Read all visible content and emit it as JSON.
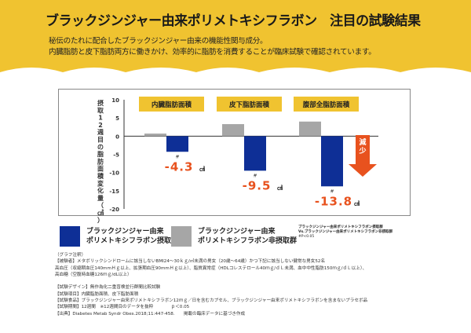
{
  "header": {
    "title": "ブラックジンジャー由来ポリメトキシフラボン　注目の試験結果",
    "subtitle_line1": "秘伝のたれに配合したブラックジンジャー由来の機能性関与成分。",
    "subtitle_line2": "内臓脂肪と皮下脂肪両方に働きかけ、効率的に脂肪を消費することが臨床試験で確認されています。",
    "background_color": "#f0c330"
  },
  "chart_data": {
    "type": "bar",
    "ylabel": "摂取12週目の脂肪面積変化量（㎠）",
    "ylim": [
      -20,
      10
    ],
    "yticks": [
      10,
      5,
      0,
      -5,
      -10,
      -15,
      -20
    ],
    "grid": false,
    "categories": [
      "内臓脂肪面積",
      "皮下脂肪面積",
      "腹部全脂肪面積"
    ],
    "series": [
      {
        "name": "ブラックジンジャー由来ポリメトキシフラボン非摂取群",
        "color": "#a6a6a6",
        "values": [
          0.7,
          3.3,
          4.0
        ]
      },
      {
        "name": "ブラックジンジャー由来ポリメトキシフラボン摂取群",
        "color": "#0e2f96",
        "values": [
          -4.3,
          -9.5,
          -13.8
        ]
      }
    ],
    "data_labels": [
      "-4.3",
      "-9.5",
      "-13.8"
    ],
    "data_label_unit": "㎠",
    "significance_mark": "#",
    "arrow_label": "減少",
    "arrow_color": "#e8521e",
    "label_color": "#e8521e"
  },
  "legend": {
    "items": [
      {
        "line1": "ブラックジンジャー由来",
        "line2": "ポリメトキシフラボン摂取群",
        "color": "#0e2f96"
      },
      {
        "line1": "ブラックジンジャー由来",
        "line2": "ポリメトキシフラボン非摂取群",
        "color": "#a6a6a6"
      }
    ],
    "note_line1": "ブラックジンジャー由来ポリメトキシフラボン摂取群",
    "note_line2": "Vs.ブラックジンジャー由来ポリメトキシフラボン非摂取群",
    "note_line3": "#P<0.05"
  },
  "notes": [
    "（グラフ注釈）",
    "【被験者】メタボリックシンドロームに該当しないBMI24～30ｋｇ/㎡未満の男女（20歳～64歳）かつ下記に該当しない健常な男女52名",
    "高血圧（収縮期血圧140mmＨｇ以上、拡張期血圧90mmＨｇ以上）、脂質異常症（HDLコレステロール40ｍｇ/ｄＬ未満、血中中性脂肪150ｍｇ/ｄＬ以上）、",
    "高血糖（空腹時血糖126ｍｇ/dL以上）",
    "",
    "【試験デザイン】無作為化二重盲検並行群間比較試験",
    "【試験項目】内臓脂肪面積、皮下脂肪面積",
    "【試験食品】ブラックジンジャー由来ポリメトキシフラボン12ｍｇ／日を含むカプセル、ブラックジンジャー由来ポリメトキシフラボンを含まないプラセボ品",
    "【試験期間】12週間　※12週間目のデータを抜粋　　　　ｐ＜0.05",
    "【出典】Diabetes Metab Syndr Obes.2018;11:447-458.　　掲載の臨床データに基づき作成"
  ]
}
